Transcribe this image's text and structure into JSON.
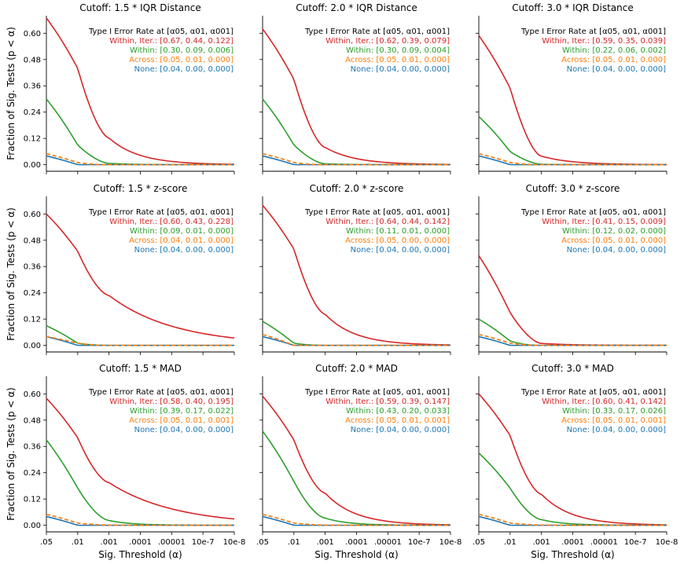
{
  "figure": {
    "ylabel": "Fraction of Sig. Tests (p < α)",
    "xlabel": "Sig. Threshold (α)",
    "legend_header": "Type I Error Rate at [α05, α01, α001]",
    "x_tick_labels": [
      ".05",
      ".01",
      ".001",
      ".0001",
      ".00001",
      "10e-7",
      "10e-8"
    ],
    "y_tick_labels": [
      "0.00",
      "0.12",
      "0.24",
      "0.36",
      "0.48",
      "0.60"
    ],
    "colors": {
      "within_iter": "#d62728",
      "within": "#2ca02c",
      "across": "#ff7f0e",
      "none": "#1f77b4"
    }
  },
  "chart_data": [
    {
      "type": "line",
      "title": "Cutoff: 1.5 * IQR Distance",
      "xlabel": "Sig. Threshold (α)",
      "ylabel": "Fraction of Sig. Tests (p < α)",
      "x": [
        ".05",
        ".01",
        ".001",
        ".0001",
        ".00001",
        "10e-7",
        "10e-8"
      ],
      "ylim": [
        -0.03,
        0.68
      ],
      "series": [
        {
          "name": "Within, Iter.",
          "label": "Within, Iter.: [0.67,  0.44, 0.122]",
          "rates": [
            0.67,
            0.44,
            0.122
          ],
          "color": "#d62728"
        },
        {
          "name": "Within",
          "label": "Within: [0.30,  0.09, 0.006]",
          "rates": [
            0.3,
            0.09,
            0.006
          ],
          "color": "#2ca02c"
        },
        {
          "name": "Across",
          "label": "Across: [0.05,  0.01, 0.000]",
          "rates": [
            0.05,
            0.01,
            0.0
          ],
          "color": "#ff7f0e"
        },
        {
          "name": "None",
          "label": "None: [0.04,  0.00, 0.000]",
          "rates": [
            0.04,
            0.0,
            0.0
          ],
          "color": "#1f77b4"
        }
      ]
    },
    {
      "type": "line",
      "title": "Cutoff: 2.0 * IQR Distance",
      "xlabel": "Sig. Threshold (α)",
      "ylabel": "Fraction of Sig. Tests (p < α)",
      "x": [
        ".05",
        ".01",
        ".001",
        ".0001",
        ".00001",
        "10e-7",
        "10e-8"
      ],
      "ylim": [
        -0.03,
        0.68
      ],
      "series": [
        {
          "name": "Within, Iter.",
          "label": "Within, Iter.: [0.62,  0.39, 0.079]",
          "rates": [
            0.62,
            0.39,
            0.079
          ],
          "color": "#d62728"
        },
        {
          "name": "Within",
          "label": "Within: [0.30,  0.09, 0.004]",
          "rates": [
            0.3,
            0.09,
            0.004
          ],
          "color": "#2ca02c"
        },
        {
          "name": "Across",
          "label": "Across: [0.05,  0.01, 0.000]",
          "rates": [
            0.05,
            0.01,
            0.0
          ],
          "color": "#ff7f0e"
        },
        {
          "name": "None",
          "label": "None: [0.04,  0.00, 0.000]",
          "rates": [
            0.04,
            0.0,
            0.0
          ],
          "color": "#1f77b4"
        }
      ]
    },
    {
      "type": "line",
      "title": "Cutoff: 3.0 * IQR Distance",
      "xlabel": "Sig. Threshold (α)",
      "ylabel": "Fraction of Sig. Tests (p < α)",
      "x": [
        ".05",
        ".01",
        ".001",
        ".0001",
        ".00001",
        "10e-7",
        "10e-8"
      ],
      "ylim": [
        -0.03,
        0.68
      ],
      "series": [
        {
          "name": "Within, Iter.",
          "label": "Within, Iter.: [0.59,  0.35, 0.039]",
          "rates": [
            0.59,
            0.35,
            0.039
          ],
          "color": "#d62728"
        },
        {
          "name": "Within",
          "label": "Within: [0.22,  0.06, 0.002]",
          "rates": [
            0.22,
            0.06,
            0.002
          ],
          "color": "#2ca02c"
        },
        {
          "name": "Across",
          "label": "Across: [0.05,  0.01, 0.000]",
          "rates": [
            0.05,
            0.01,
            0.0
          ],
          "color": "#ff7f0e"
        },
        {
          "name": "None",
          "label": "None: [0.04,  0.00, 0.000]",
          "rates": [
            0.04,
            0.0,
            0.0
          ],
          "color": "#1f77b4"
        }
      ]
    },
    {
      "type": "line",
      "title": "Cutoff: 1.5 * z-score",
      "xlabel": "Sig. Threshold (α)",
      "ylabel": "Fraction of Sig. Tests (p < α)",
      "x": [
        ".05",
        ".01",
        ".001",
        ".0001",
        ".00001",
        "10e-7",
        "10e-8"
      ],
      "ylim": [
        -0.03,
        0.68
      ],
      "series": [
        {
          "name": "Within, Iter.",
          "label": "Within, Iter.: [0.60,  0.43, 0.228]",
          "rates": [
            0.6,
            0.43,
            0.228
          ],
          "color": "#d62728"
        },
        {
          "name": "Within",
          "label": "Within: [0.09,  0.01, 0.000]",
          "rates": [
            0.09,
            0.01,
            0.0
          ],
          "color": "#2ca02c"
        },
        {
          "name": "Across",
          "label": "Across: [0.04,  0.01, 0.000]",
          "rates": [
            0.04,
            0.01,
            0.0
          ],
          "color": "#ff7f0e"
        },
        {
          "name": "None",
          "label": "None: [0.04,  0.00, 0.000]",
          "rates": [
            0.04,
            0.0,
            0.0
          ],
          "color": "#1f77b4"
        }
      ]
    },
    {
      "type": "line",
      "title": "Cutoff: 2.0 * z-score",
      "xlabel": "Sig. Threshold (α)",
      "ylabel": "Fraction of Sig. Tests (p < α)",
      "x": [
        ".05",
        ".01",
        ".001",
        ".0001",
        ".00001",
        "10e-7",
        "10e-8"
      ],
      "ylim": [
        -0.03,
        0.68
      ],
      "series": [
        {
          "name": "Within, Iter.",
          "label": "Within, Iter.: [0.64,  0.44, 0.142]",
          "rates": [
            0.64,
            0.44,
            0.142
          ],
          "color": "#d62728"
        },
        {
          "name": "Within",
          "label": "Within: [0.11,  0.01, 0.000]",
          "rates": [
            0.11,
            0.01,
            0.0
          ],
          "color": "#2ca02c"
        },
        {
          "name": "Across",
          "label": "Across: [0.05,  0.00, 0.000]",
          "rates": [
            0.05,
            0.0,
            0.0
          ],
          "color": "#ff7f0e"
        },
        {
          "name": "None",
          "label": "None: [0.04,  0.00, 0.000]",
          "rates": [
            0.04,
            0.0,
            0.0
          ],
          "color": "#1f77b4"
        }
      ]
    },
    {
      "type": "line",
      "title": "Cutoff: 3.0 * z-score",
      "xlabel": "Sig. Threshold (α)",
      "ylabel": "Fraction of Sig. Tests (p < α)",
      "x": [
        ".05",
        ".01",
        ".001",
        ".0001",
        ".00001",
        "10e-7",
        "10e-8"
      ],
      "ylim": [
        -0.03,
        0.68
      ],
      "series": [
        {
          "name": "Within, Iter.",
          "label": "Within, Iter.: [0.41,  0.15, 0.009]",
          "rates": [
            0.41,
            0.15,
            0.009
          ],
          "color": "#d62728"
        },
        {
          "name": "Within",
          "label": "Within: [0.12,  0.02, 0.000]",
          "rates": [
            0.12,
            0.02,
            0.0
          ],
          "color": "#2ca02c"
        },
        {
          "name": "Across",
          "label": "Across: [0.05,  0.01, 0.000]",
          "rates": [
            0.05,
            0.01,
            0.0
          ],
          "color": "#ff7f0e"
        },
        {
          "name": "None",
          "label": "None: [0.04,  0.00, 0.000]",
          "rates": [
            0.04,
            0.0,
            0.0
          ],
          "color": "#1f77b4"
        }
      ]
    },
    {
      "type": "line",
      "title": "Cutoff: 1.5 * MAD",
      "xlabel": "Sig. Threshold (α)",
      "ylabel": "Fraction of Sig. Tests (p < α)",
      "x": [
        ".05",
        ".01",
        ".001",
        ".0001",
        ".00001",
        "10e-7",
        "10e-8"
      ],
      "ylim": [
        -0.03,
        0.68
      ],
      "series": [
        {
          "name": "Within, Iter.",
          "label": "Within, Iter.: [0.58,  0.40, 0.195]",
          "rates": [
            0.58,
            0.4,
            0.195
          ],
          "color": "#d62728"
        },
        {
          "name": "Within",
          "label": "Within: [0.39,  0.17, 0.022]",
          "rates": [
            0.39,
            0.17,
            0.022
          ],
          "color": "#2ca02c"
        },
        {
          "name": "Across",
          "label": "Across: [0.05,  0.01, 0.001]",
          "rates": [
            0.05,
            0.01,
            0.001
          ],
          "color": "#ff7f0e"
        },
        {
          "name": "None",
          "label": "None: [0.04,  0.00, 0.000]",
          "rates": [
            0.04,
            0.0,
            0.0
          ],
          "color": "#1f77b4"
        }
      ]
    },
    {
      "type": "line",
      "title": "Cutoff: 2.0 * MAD",
      "xlabel": "Sig. Threshold (α)",
      "ylabel": "Fraction of Sig. Tests (p < α)",
      "x": [
        ".05",
        ".01",
        ".001",
        ".0001",
        ".00001",
        "10e-7",
        "10e-8"
      ],
      "ylim": [
        -0.03,
        0.68
      ],
      "series": [
        {
          "name": "Within, Iter.",
          "label": "Within, Iter.: [0.59,  0.39, 0.147]",
          "rates": [
            0.59,
            0.39,
            0.147
          ],
          "color": "#d62728"
        },
        {
          "name": "Within",
          "label": "Within: [0.43,  0.20, 0.033]",
          "rates": [
            0.43,
            0.2,
            0.033
          ],
          "color": "#2ca02c"
        },
        {
          "name": "Across",
          "label": "Across: [0.05,  0.01, 0.001]",
          "rates": [
            0.05,
            0.01,
            0.001
          ],
          "color": "#ff7f0e"
        },
        {
          "name": "None",
          "label": "None: [0.04,  0.00, 0.000]",
          "rates": [
            0.04,
            0.0,
            0.0
          ],
          "color": "#1f77b4"
        }
      ]
    },
    {
      "type": "line",
      "title": "Cutoff: 3.0 * MAD",
      "xlabel": "Sig. Threshold (α)",
      "ylabel": "Fraction of Sig. Tests (p < α)",
      "x": [
        ".05",
        ".01",
        ".001",
        ".0001",
        ".00001",
        "10e-7",
        "10e-8"
      ],
      "ylim": [
        -0.03,
        0.68
      ],
      "series": [
        {
          "name": "Within, Iter.",
          "label": "Within, Iter.: [0.60,  0.41, 0.142]",
          "rates": [
            0.6,
            0.41,
            0.142
          ],
          "color": "#d62728"
        },
        {
          "name": "Within",
          "label": "Within: [0.33,  0.17, 0.026]",
          "rates": [
            0.33,
            0.17,
            0.026
          ],
          "color": "#2ca02c"
        },
        {
          "name": "Across",
          "label": "Across: [0.05,  0.01, 0.001]",
          "rates": [
            0.05,
            0.01,
            0.001
          ],
          "color": "#ff7f0e"
        },
        {
          "name": "None",
          "label": "None: [0.04,  0.00, 0.000]",
          "rates": [
            0.04,
            0.0,
            0.0
          ],
          "color": "#1f77b4"
        }
      ]
    }
  ]
}
